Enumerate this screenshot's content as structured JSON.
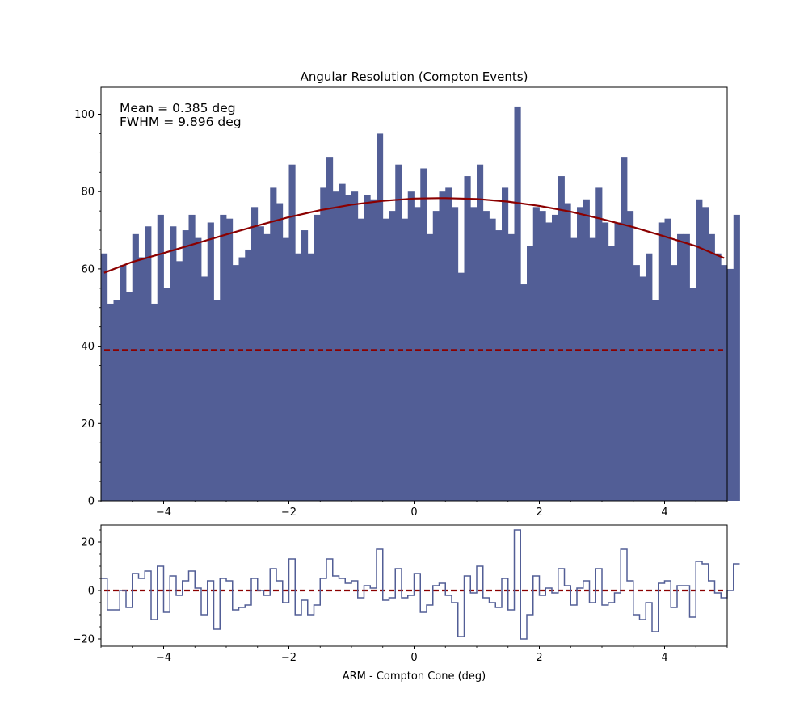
{
  "chart_data": [
    {
      "type": "bar",
      "title": "Angular Resolution (Compton Events)",
      "xlabel": "",
      "ylabel": "",
      "xlim": [
        -5,
        5
      ],
      "ylim": [
        0,
        107
      ],
      "xticks": [
        -4,
        -2,
        0,
        2,
        4
      ],
      "xtick_labels": [
        "−4",
        "−2",
        "0",
        "2",
        "4"
      ],
      "yticks": [
        0,
        20,
        40,
        60,
        80,
        100
      ],
      "ytick_labels": [
        "0",
        "20",
        "40",
        "60",
        "80",
        "100"
      ],
      "bin_width": 0.1,
      "bin_start": -5,
      "values": [
        64,
        51,
        52,
        61,
        54,
        69,
        63,
        71,
        51,
        74,
        55,
        71,
        62,
        70,
        74,
        68,
        58,
        72,
        52,
        74,
        73,
        61,
        63,
        65,
        76,
        71,
        69,
        81,
        77,
        68,
        87,
        64,
        70,
        64,
        74,
        81,
        89,
        80,
        82,
        79,
        80,
        73,
        79,
        78,
        95,
        73,
        75,
        87,
        73,
        80,
        76,
        86,
        69,
        75,
        80,
        81,
        76,
        59,
        84,
        76,
        87,
        75,
        73,
        70,
        81,
        69,
        102,
        56,
        66,
        76,
        75,
        72,
        74,
        84,
        77,
        68,
        76,
        78,
        68,
        81,
        72,
        66,
        72,
        89,
        75,
        61,
        58,
        64,
        52,
        72,
        73,
        61,
        69,
        69,
        55,
        78,
        76,
        69,
        64,
        61,
        60,
        74
      ],
      "fit_curve": {
        "color": "#8b0000",
        "x": [
          -4.95,
          -4.5,
          -4.0,
          -3.5,
          -3.0,
          -2.5,
          -2.0,
          -1.5,
          -1.0,
          -0.5,
          0.0,
          0.385,
          0.5,
          1.0,
          1.5,
          2.0,
          2.5,
          3.0,
          3.5,
          4.0,
          4.5,
          4.95
        ],
        "y": [
          59.0,
          61.8,
          64.1,
          66.5,
          68.9,
          71.2,
          73.4,
          75.2,
          76.6,
          77.6,
          78.2,
          78.3,
          78.3,
          78.1,
          77.4,
          76.3,
          74.8,
          72.9,
          70.8,
          68.4,
          65.9,
          62.8
        ]
      },
      "baseline": {
        "value": 39,
        "color": "#8b0000",
        "style": "dashed"
      },
      "bar_color": "#525e96",
      "annotations": [
        "Mean = 0.385 deg",
        "FWHM = 9.896 deg"
      ],
      "grid": false
    },
    {
      "type": "line",
      "title": "",
      "xlabel": "ARM - Compton Cone (deg)",
      "ylabel": "",
      "xlim": [
        -5,
        5
      ],
      "ylim": [
        -23,
        27
      ],
      "xticks": [
        -4,
        -2,
        0,
        2,
        4
      ],
      "xtick_labels": [
        "−4",
        "−2",
        "0",
        "2",
        "4"
      ],
      "yticks": [
        -20,
        0,
        20
      ],
      "ytick_labels": [
        "−20",
        "0",
        "20"
      ],
      "step_color": "#525e96",
      "residuals": [
        5,
        -8,
        -8,
        0,
        -7,
        7,
        5,
        8,
        -12,
        10,
        -9,
        6,
        -2,
        4,
        8,
        1,
        -10,
        4,
        -16,
        5,
        4,
        -8,
        -7,
        -6,
        5,
        0,
        -2,
        9,
        4,
        -5,
        13,
        -10,
        -4,
        -10,
        -6,
        5,
        13,
        6,
        5,
        3,
        4,
        -3,
        2,
        1,
        17,
        -4,
        -3,
        9,
        -3,
        -2,
        7,
        -9,
        -6,
        2,
        3,
        -2,
        -5,
        -19,
        6,
        -1,
        10,
        -3,
        -5,
        -7,
        5,
        -8,
        25,
        -20,
        -10,
        6,
        -2,
        1,
        -1,
        9,
        2,
        -6,
        1,
        4,
        -5,
        9,
        -6,
        -5,
        -1,
        17,
        4,
        -10,
        -12,
        -5,
        -17,
        3,
        4,
        -7,
        2,
        2,
        -11,
        12,
        11,
        4,
        -1,
        -3,
        0,
        11
      ],
      "baseline": {
        "value": 0,
        "color": "#8b0000",
        "style": "dashed"
      },
      "grid": false
    }
  ]
}
